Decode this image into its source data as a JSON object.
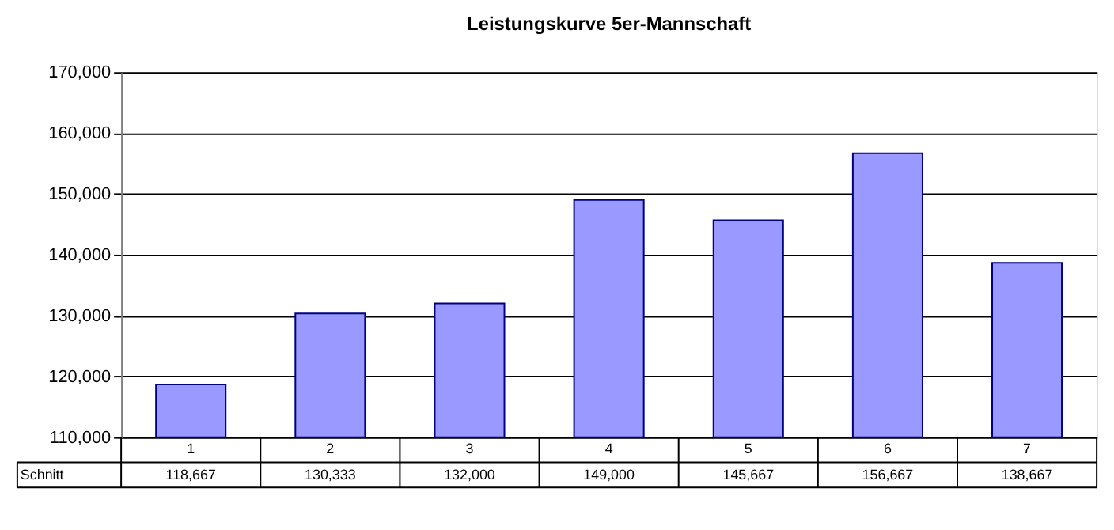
{
  "chart_data": {
    "type": "bar",
    "title": "Leistungskurve 5er-Mannschaft",
    "categories": [
      "1",
      "2",
      "3",
      "4",
      "5",
      "6",
      "7"
    ],
    "series": [
      {
        "name": "Schnitt",
        "color": "#9999ff",
        "values": [
          118667,
          130333,
          132000,
          149000,
          145667,
          156667,
          138667
        ],
        "value_labels": [
          "118,667",
          "130,333",
          "132,000",
          "149,000",
          "145,667",
          "156,667",
          "138,667"
        ]
      }
    ],
    "ylim": [
      110000,
      170000
    ],
    "yticks": [
      {
        "value": 110000,
        "label": "110,000"
      },
      {
        "value": 120000,
        "label": "120,000"
      },
      {
        "value": 130000,
        "label": "130,000"
      },
      {
        "value": 140000,
        "label": "140,000"
      },
      {
        "value": 150000,
        "label": "150,000"
      },
      {
        "value": 160000,
        "label": "160,000"
      },
      {
        "value": 170000,
        "label": "170,000"
      }
    ],
    "grid": "y"
  }
}
